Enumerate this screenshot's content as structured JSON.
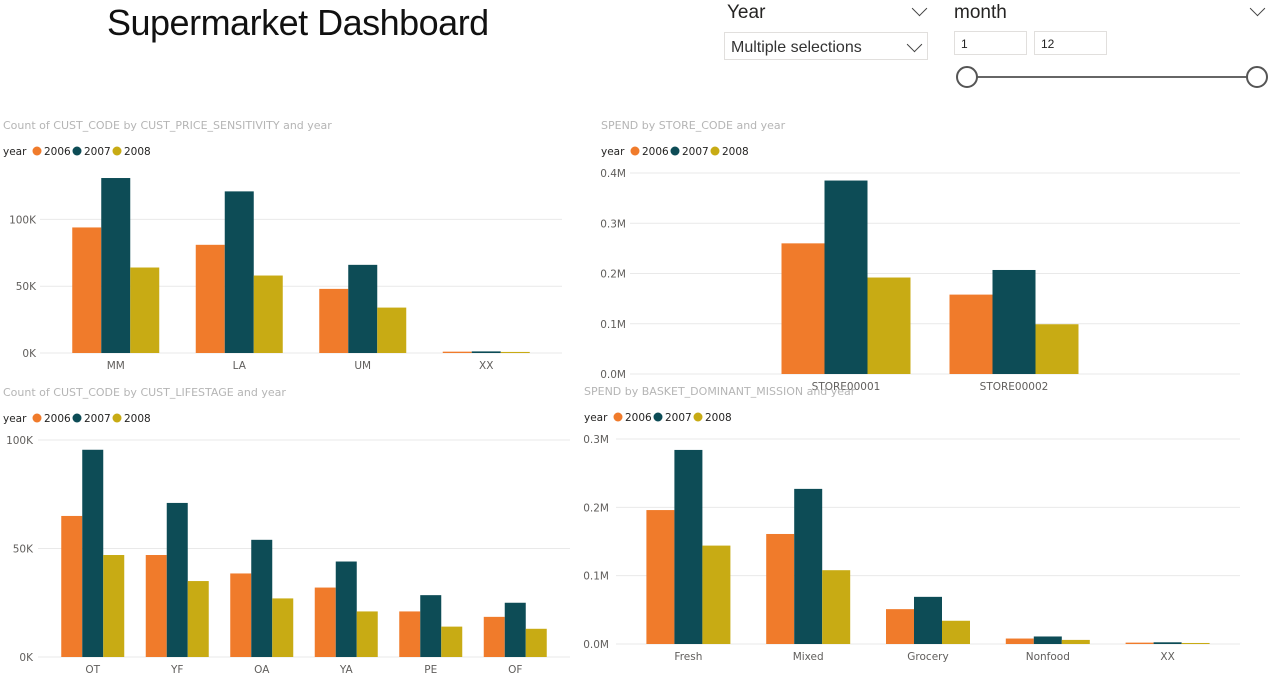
{
  "dashboard": {
    "title": "Supermarket Dashboard",
    "year_slicer": {
      "label": "Year",
      "selected": "Multiple selections"
    },
    "month_slicer": {
      "label": "month",
      "min_value": "1",
      "max_value": "12"
    }
  },
  "colors": {
    "2006": "#f07b2b",
    "2007": "#0d4c56",
    "2008": "#c8ab14",
    "grid": "#e9e9e9",
    "title": "#b5b5b5",
    "tick": "#605e5c"
  },
  "chart_data": [
    {
      "type": "bar",
      "title": "Count of CUST_CODE by CUST_PRICE_SENSITIVITY and year",
      "legend_title": "year",
      "categories": [
        "MM",
        "LA",
        "UM",
        "XX"
      ],
      "series": [
        {
          "name": "2006",
          "values": [
            94000,
            81000,
            48000,
            1000
          ]
        },
        {
          "name": "2007",
          "values": [
            131000,
            121000,
            66000,
            1200
          ]
        },
        {
          "name": "2008",
          "values": [
            64000,
            58000,
            34000,
            800
          ]
        }
      ],
      "yticks": [
        0,
        50000,
        100000
      ],
      "ytick_labels": [
        "0K",
        "50K",
        "100K"
      ],
      "ylim": [
        0,
        140000
      ]
    },
    {
      "type": "bar",
      "title": "SPEND by STORE_CODE and year",
      "legend_title": "year",
      "categories": [
        "STORE00001",
        "STORE00002"
      ],
      "series": [
        {
          "name": "2006",
          "values": [
            260000,
            158000
          ]
        },
        {
          "name": "2007",
          "values": [
            385000,
            207000
          ]
        },
        {
          "name": "2008",
          "values": [
            192000,
            99000
          ]
        }
      ],
      "yticks": [
        0,
        100000,
        200000,
        300000,
        400000
      ],
      "ytick_labels": [
        "0.0M",
        "0.1M",
        "0.2M",
        "0.3M",
        "0.4M"
      ],
      "ylim": [
        0,
        400000
      ]
    },
    {
      "type": "bar",
      "title": "Count of CUST_CODE by CUST_LIFESTAGE and year",
      "legend_title": "year",
      "categories": [
        "OT",
        "YF",
        "OA",
        "YA",
        "PE",
        "OF"
      ],
      "series": [
        {
          "name": "2006",
          "values": [
            65000,
            47000,
            38500,
            32000,
            21000,
            18500
          ]
        },
        {
          "name": "2007",
          "values": [
            95500,
            71000,
            54000,
            44000,
            28500,
            25000
          ]
        },
        {
          "name": "2008",
          "values": [
            47000,
            35000,
            27000,
            21000,
            14000,
            13000
          ]
        }
      ],
      "yticks": [
        0,
        50000,
        100000
      ],
      "ytick_labels": [
        "0K",
        "50K",
        "100K"
      ],
      "ylim": [
        0,
        100000
      ]
    },
    {
      "type": "bar",
      "title": "SPEND by BASKET_DOMINANT_MISSION and year",
      "legend_title": "year",
      "categories": [
        "Fresh",
        "Mixed",
        "Grocery",
        "Nonfood",
        "XX"
      ],
      "series": [
        {
          "name": "2006",
          "values": [
            196000,
            161000,
            51000,
            8000,
            2000
          ]
        },
        {
          "name": "2007",
          "values": [
            284000,
            227000,
            69000,
            11000,
            2500
          ]
        },
        {
          "name": "2008",
          "values": [
            144000,
            108000,
            34000,
            6000,
            1500
          ]
        }
      ],
      "yticks": [
        0,
        100000,
        200000,
        300000
      ],
      "ytick_labels": [
        "0.0M",
        "0.1M",
        "0.2M",
        "0.3M"
      ],
      "ylim": [
        0,
        300000
      ]
    }
  ]
}
